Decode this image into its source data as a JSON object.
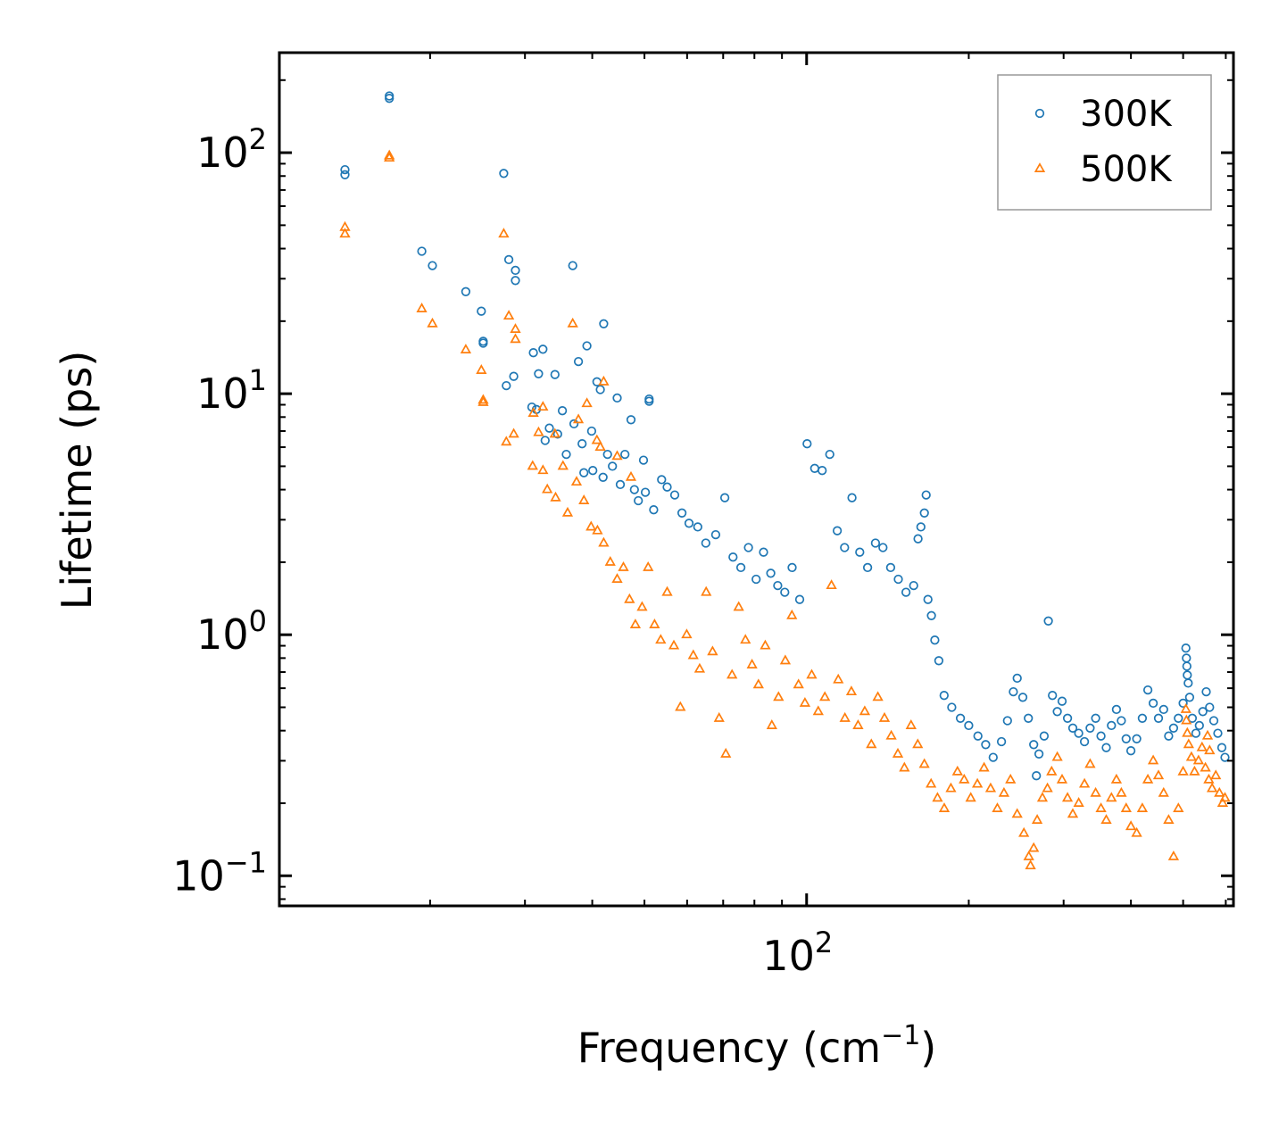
{
  "chart_data": {
    "type": "scatter",
    "title": "",
    "xlabel": "Frequency (cm",
    "xlabel_sup": "−1",
    "xlabel_tail": ")",
    "ylabel": "Lifetime (ps)",
    "xscale": "log",
    "yscale": "log",
    "xlim": [
      10.5,
      620
    ],
    "ylim": [
      0.075,
      260
    ],
    "x_ticks": [
      {
        "value": 100,
        "base": "10",
        "exp": "2"
      }
    ],
    "y_ticks": [
      {
        "value": 0.1,
        "base": "10",
        "exp": "−1"
      },
      {
        "value": 1,
        "base": "10",
        "exp": "0"
      },
      {
        "value": 10,
        "base": "10",
        "exp": "1"
      },
      {
        "value": 100,
        "base": "10",
        "exp": "2"
      }
    ],
    "legend": {
      "position": "top-right"
    },
    "series": [
      {
        "name": "300K",
        "color": "#1f77b4",
        "marker": "circle",
        "points": [
          [
            13.9,
            85
          ],
          [
            13.9,
            81
          ],
          [
            16.8,
            172
          ],
          [
            16.8,
            168
          ],
          [
            19.3,
            39
          ],
          [
            20.2,
            34
          ],
          [
            23.3,
            26.5
          ],
          [
            24.9,
            22
          ],
          [
            25.1,
            16.5
          ],
          [
            25.1,
            16.2
          ],
          [
            27.4,
            82
          ],
          [
            28.0,
            36
          ],
          [
            28.8,
            32.5
          ],
          [
            28.8,
            29.5
          ],
          [
            28.6,
            11.8
          ],
          [
            27.7,
            10.8
          ],
          [
            31.1,
            14.8
          ],
          [
            32.4,
            15.3
          ],
          [
            31.8,
            12.1
          ],
          [
            34.1,
            12.0
          ],
          [
            36.8,
            34
          ],
          [
            37.7,
            13.6
          ],
          [
            39.1,
            15.8
          ],
          [
            42.0,
            19.5
          ],
          [
            40.8,
            11.2
          ],
          [
            41.4,
            10.4
          ],
          [
            44.5,
            9.6
          ],
          [
            47.2,
            7.8
          ],
          [
            49.8,
            5.3
          ],
          [
            51.0,
            9.3
          ],
          [
            51.0,
            9.5
          ],
          [
            30.9,
            8.8
          ],
          [
            31.5,
            8.6
          ],
          [
            32.7,
            6.4
          ],
          [
            33.3,
            7.2
          ],
          [
            34.5,
            6.8
          ],
          [
            35.2,
            8.5
          ],
          [
            35.8,
            5.6
          ],
          [
            37.0,
            7.5
          ],
          [
            38.3,
            6.2
          ],
          [
            39.9,
            7.0
          ],
          [
            38.6,
            4.7
          ],
          [
            40.1,
            4.8
          ],
          [
            41.9,
            4.5
          ],
          [
            42.7,
            5.6
          ],
          [
            43.6,
            5.0
          ],
          [
            45.1,
            4.2
          ],
          [
            46.0,
            5.6
          ],
          [
            47.9,
            4.0
          ],
          [
            48.7,
            3.6
          ],
          [
            50.2,
            3.9
          ],
          [
            52.0,
            3.3
          ],
          [
            53.8,
            4.4
          ],
          [
            55.1,
            4.1
          ],
          [
            56.9,
            3.8
          ],
          [
            58.7,
            3.2
          ],
          [
            60.5,
            2.9
          ],
          [
            62.8,
            2.8
          ],
          [
            65.0,
            2.4
          ],
          [
            67.8,
            2.6
          ],
          [
            70.5,
            3.7
          ],
          [
            73.0,
            2.1
          ],
          [
            75.5,
            1.9
          ],
          [
            78.0,
            2.3
          ],
          [
            80.6,
            1.7
          ],
          [
            83.2,
            2.2
          ],
          [
            85.8,
            1.8
          ],
          [
            88.4,
            1.6
          ],
          [
            91.1,
            1.5
          ],
          [
            94.0,
            1.9
          ],
          [
            97.1,
            1.4
          ],
          [
            100.2,
            6.2
          ],
          [
            103.5,
            4.9
          ],
          [
            106.9,
            4.8
          ],
          [
            110.4,
            5.6
          ],
          [
            114.0,
            2.7
          ],
          [
            117.6,
            2.3
          ],
          [
            121.4,
            3.7
          ],
          [
            125.5,
            2.2
          ],
          [
            129.8,
            1.9
          ],
          [
            134.2,
            2.4
          ],
          [
            138.6,
            2.3
          ],
          [
            143.2,
            1.9
          ],
          [
            148.0,
            1.7
          ],
          [
            152.9,
            1.5
          ],
          [
            158.0,
            1.6
          ],
          [
            161.0,
            2.5
          ],
          [
            163.0,
            2.8
          ],
          [
            165.4,
            3.2
          ],
          [
            166.7,
            3.8
          ],
          [
            168.0,
            1.4
          ],
          [
            170.5,
            1.2
          ],
          [
            173.0,
            0.95
          ],
          [
            176.0,
            0.78
          ],
          [
            180.0,
            0.56
          ],
          [
            186.0,
            0.5
          ],
          [
            193.0,
            0.45
          ],
          [
            200.0,
            0.42
          ],
          [
            208.0,
            0.38
          ],
          [
            215.0,
            0.35
          ],
          [
            222.0,
            0.31
          ],
          [
            230.0,
            0.36
          ],
          [
            236.0,
            0.44
          ],
          [
            242.0,
            0.58
          ],
          [
            246.0,
            0.66
          ],
          [
            252.0,
            0.55
          ],
          [
            258.0,
            0.45
          ],
          [
            264.0,
            0.35
          ],
          [
            267.0,
            0.26
          ],
          [
            270.0,
            0.32
          ],
          [
            276.0,
            0.38
          ],
          [
            281.0,
            1.14
          ],
          [
            286.0,
            0.56
          ],
          [
            292.0,
            0.48
          ],
          [
            298.0,
            0.53
          ],
          [
            305.0,
            0.45
          ],
          [
            312.0,
            0.41
          ],
          [
            320.0,
            0.39
          ],
          [
            328.0,
            0.36
          ],
          [
            336.0,
            0.41
          ],
          [
            344.0,
            0.45
          ],
          [
            352.0,
            0.38
          ],
          [
            360.0,
            0.34
          ],
          [
            368.0,
            0.42
          ],
          [
            376.0,
            0.49
          ],
          [
            384.0,
            0.44
          ],
          [
            392.0,
            0.37
          ],
          [
            400.0,
            0.33
          ],
          [
            410.0,
            0.37
          ],
          [
            420.0,
            0.45
          ],
          [
            430.0,
            0.59
          ],
          [
            440.0,
            0.52
          ],
          [
            450.0,
            0.45
          ],
          [
            460.0,
            0.49
          ],
          [
            470.0,
            0.38
          ],
          [
            480.0,
            0.41
          ],
          [
            490.0,
            0.45
          ],
          [
            500.0,
            0.52
          ],
          [
            506.0,
            0.88
          ],
          [
            507.0,
            0.8
          ],
          [
            508.0,
            0.74
          ],
          [
            509.0,
            0.68
          ],
          [
            511.0,
            0.63
          ],
          [
            514.0,
            0.55
          ],
          [
            520.0,
            0.45
          ],
          [
            528.0,
            0.39
          ],
          [
            536.0,
            0.42
          ],
          [
            544.0,
            0.48
          ],
          [
            552.0,
            0.58
          ],
          [
            560.0,
            0.5
          ],
          [
            570.0,
            0.44
          ],
          [
            580.0,
            0.39
          ],
          [
            590.0,
            0.34
          ],
          [
            598.0,
            0.31
          ]
        ]
      },
      {
        "name": "500K",
        "color": "#ff7f0e",
        "marker": "triangle",
        "points": [
          [
            13.9,
            49
          ],
          [
            13.9,
            46
          ],
          [
            16.8,
            97
          ],
          [
            16.8,
            95
          ],
          [
            19.3,
            22.5
          ],
          [
            20.2,
            19.5
          ],
          [
            23.3,
            15.2
          ],
          [
            24.9,
            12.5
          ],
          [
            25.1,
            9.4
          ],
          [
            25.1,
            9.2
          ],
          [
            27.4,
            46
          ],
          [
            28.0,
            21
          ],
          [
            28.8,
            18.5
          ],
          [
            28.8,
            16.8
          ],
          [
            28.6,
            6.8
          ],
          [
            27.7,
            6.3
          ],
          [
            31.1,
            8.3
          ],
          [
            32.4,
            8.8
          ],
          [
            31.8,
            6.9
          ],
          [
            34.1,
            6.8
          ],
          [
            36.8,
            19.5
          ],
          [
            37.7,
            7.8
          ],
          [
            39.1,
            9.1
          ],
          [
            42.0,
            11.2
          ],
          [
            40.8,
            6.4
          ],
          [
            41.4,
            6.0
          ],
          [
            44.5,
            5.5
          ],
          [
            47.2,
            4.5
          ],
          [
            31.0,
            5.0
          ],
          [
            32.4,
            4.8
          ],
          [
            33.0,
            4.0
          ],
          [
            34.2,
            3.7
          ],
          [
            35.3,
            5.0
          ],
          [
            36.0,
            3.2
          ],
          [
            37.4,
            4.3
          ],
          [
            38.6,
            3.6
          ],
          [
            39.8,
            2.8
          ],
          [
            40.9,
            2.7
          ],
          [
            42.0,
            2.4
          ],
          [
            43.2,
            2.0
          ],
          [
            44.5,
            1.7
          ],
          [
            45.7,
            1.9
          ],
          [
            46.9,
            1.4
          ],
          [
            48.1,
            1.1
          ],
          [
            49.5,
            1.3
          ],
          [
            50.8,
            1.9
          ],
          [
            52.2,
            1.1
          ],
          [
            53.6,
            0.95
          ],
          [
            55.1,
            1.5
          ],
          [
            56.7,
            0.9
          ],
          [
            58.3,
            0.5
          ],
          [
            59.9,
            1.0
          ],
          [
            61.6,
            0.82
          ],
          [
            63.3,
            0.72
          ],
          [
            65.1,
            1.5
          ],
          [
            66.9,
            0.85
          ],
          [
            68.8,
            0.45
          ],
          [
            70.8,
            0.32
          ],
          [
            72.7,
            0.68
          ],
          [
            74.8,
            1.3
          ],
          [
            77.0,
            0.95
          ],
          [
            79.2,
            0.75
          ],
          [
            81.4,
            0.62
          ],
          [
            83.8,
            0.9
          ],
          [
            86.2,
            0.42
          ],
          [
            88.7,
            0.55
          ],
          [
            91.3,
            0.78
          ],
          [
            93.9,
            1.2
          ],
          [
            96.6,
            0.62
          ],
          [
            99.3,
            0.52
          ],
          [
            102.2,
            0.68
          ],
          [
            105.1,
            0.48
          ],
          [
            108.1,
            0.55
          ],
          [
            111.2,
            1.6
          ],
          [
            114.5,
            0.65
          ],
          [
            117.8,
            0.45
          ],
          [
            121.1,
            0.58
          ],
          [
            124.6,
            0.42
          ],
          [
            128.2,
            0.48
          ],
          [
            131.9,
            0.35
          ],
          [
            135.6,
            0.55
          ],
          [
            139.5,
            0.45
          ],
          [
            143.6,
            0.38
          ],
          [
            147.7,
            0.32
          ],
          [
            151.9,
            0.28
          ],
          [
            156.3,
            0.42
          ],
          [
            160.8,
            0.35
          ],
          [
            165.4,
            0.29
          ],
          [
            170.2,
            0.24
          ],
          [
            175.0,
            0.21
          ],
          [
            180.1,
            0.19
          ],
          [
            185.3,
            0.23
          ],
          [
            190.6,
            0.27
          ],
          [
            196.1,
            0.25
          ],
          [
            201.7,
            0.21
          ],
          [
            207.5,
            0.24
          ],
          [
            213.5,
            0.28
          ],
          [
            219.6,
            0.23
          ],
          [
            226.0,
            0.19
          ],
          [
            232.5,
            0.22
          ],
          [
            239.1,
            0.25
          ],
          [
            246.0,
            0.18
          ],
          [
            253.1,
            0.15
          ],
          [
            258.5,
            0.12
          ],
          [
            260.4,
            0.11
          ],
          [
            264.0,
            0.13
          ],
          [
            267.9,
            0.17
          ],
          [
            274.0,
            0.21
          ],
          [
            280.0,
            0.23
          ],
          [
            285.0,
            0.27
          ],
          [
            292.0,
            0.31
          ],
          [
            298.0,
            0.25
          ],
          [
            305.0,
            0.21
          ],
          [
            312.0,
            0.18
          ],
          [
            320.0,
            0.2
          ],
          [
            328.0,
            0.24
          ],
          [
            336.0,
            0.29
          ],
          [
            344.0,
            0.22
          ],
          [
            352.0,
            0.19
          ],
          [
            360.0,
            0.17
          ],
          [
            368.0,
            0.21
          ],
          [
            376.0,
            0.25
          ],
          [
            384.0,
            0.22
          ],
          [
            392.0,
            0.19
          ],
          [
            400.0,
            0.16
          ],
          [
            410.0,
            0.15
          ],
          [
            420.0,
            0.19
          ],
          [
            430.0,
            0.25
          ],
          [
            440.0,
            0.3
          ],
          [
            450.0,
            0.26
          ],
          [
            460.0,
            0.22
          ],
          [
            470.0,
            0.17
          ],
          [
            480.0,
            0.12
          ],
          [
            490.0,
            0.19
          ],
          [
            500.0,
            0.27
          ],
          [
            506.0,
            0.49
          ],
          [
            507.0,
            0.44
          ],
          [
            509.0,
            0.39
          ],
          [
            512.0,
            0.35
          ],
          [
            518.0,
            0.31
          ],
          [
            525.0,
            0.27
          ],
          [
            534.0,
            0.3
          ],
          [
            542.0,
            0.34
          ],
          [
            550.0,
            0.28
          ],
          [
            558.0,
            0.25
          ],
          [
            566.0,
            0.23
          ],
          [
            575.0,
            0.26
          ],
          [
            584.0,
            0.22
          ],
          [
            592.0,
            0.2
          ],
          [
            598.0,
            0.21
          ],
          [
            555.0,
            0.38
          ],
          [
            560.0,
            0.33
          ]
        ]
      }
    ]
  }
}
